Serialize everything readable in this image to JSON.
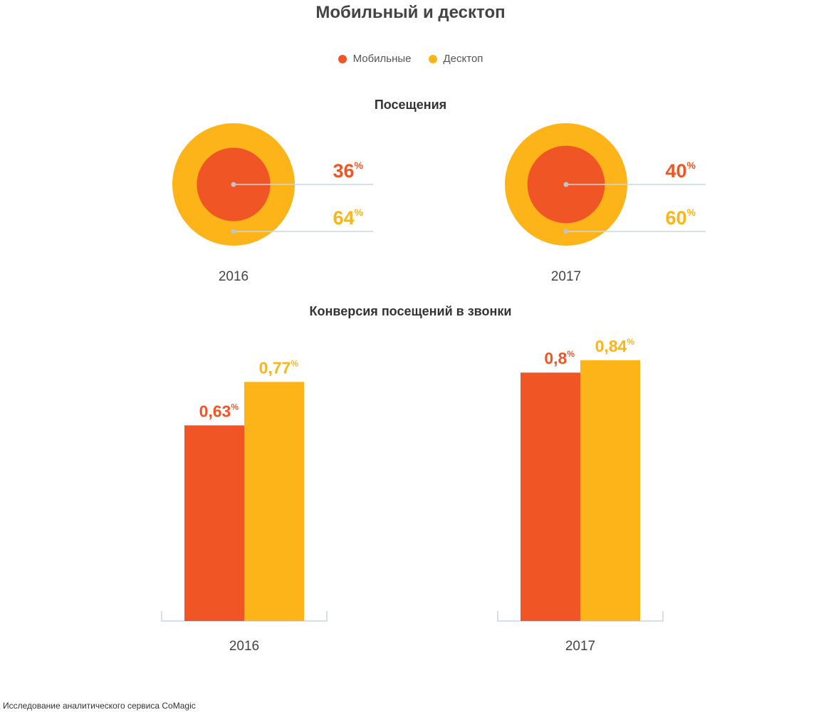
{
  "title": "Мобильный и десктоп",
  "footnote": "Исследование аналитического сервиса CoMagic",
  "colors": {
    "mobile": "#F05526",
    "desktop": "#FDB418",
    "line": "#C9D6DE",
    "dot": "#C4C4C4"
  },
  "legend": [
    {
      "label": "Мобильные",
      "color": "#F05526"
    },
    {
      "label": "Десктоп",
      "color": "#FDB418"
    }
  ],
  "chart_data": [
    {
      "type": "pie",
      "title": "Посещения",
      "unit": "%",
      "groups": [
        {
          "year": "2016",
          "mobile": 36,
          "desktop": 64
        },
        {
          "year": "2017",
          "mobile": 40,
          "desktop": 60
        }
      ]
    },
    {
      "type": "bar",
      "title": "Конверсия посещений в звонки",
      "unit": "%",
      "categories": [
        "2016",
        "2017"
      ],
      "series": [
        {
          "name": "Мобильные",
          "values": [
            0.63,
            0.8
          ],
          "labels": [
            "0,63",
            "0,8"
          ]
        },
        {
          "name": "Десктоп",
          "values": [
            0.77,
            0.84
          ],
          "labels": [
            "0,77",
            "0,84"
          ]
        }
      ]
    }
  ]
}
